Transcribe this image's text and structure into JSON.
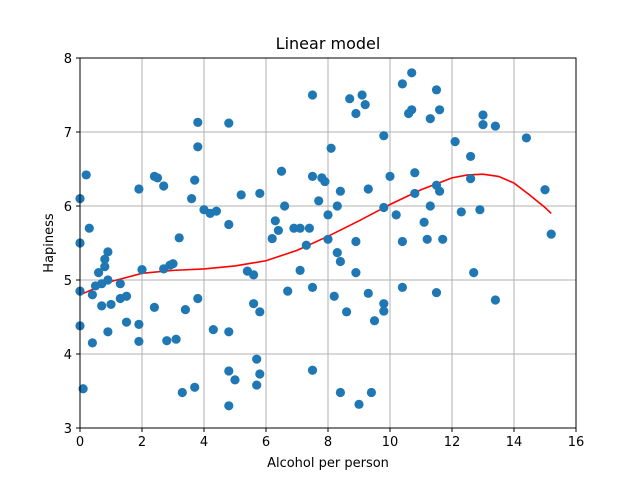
{
  "chart_data": {
    "type": "scatter",
    "title": "Linear model",
    "xlabel": "Alcohol per person",
    "ylabel": "Hapiness",
    "xlim": [
      0,
      16
    ],
    "ylim": [
      3,
      8
    ],
    "xticks": [
      "0",
      "2",
      "4",
      "6",
      "8",
      "10",
      "12",
      "14",
      "16"
    ],
    "yticks": [
      "3",
      "4",
      "5",
      "6",
      "7",
      "8"
    ],
    "grid": true,
    "colors": {
      "points": "#1f77b4",
      "fit_line": "#ff0000",
      "grid": "#b0b0b0"
    },
    "series": [
      {
        "kind": "points",
        "points": [
          [
            0.0,
            6.1
          ],
          [
            0.2,
            6.42
          ],
          [
            0.3,
            5.7
          ],
          [
            0.0,
            5.5
          ],
          [
            0.0,
            4.85
          ],
          [
            0.0,
            4.38
          ],
          [
            0.1,
            3.53
          ],
          [
            0.4,
            4.8
          ],
          [
            0.4,
            4.15
          ],
          [
            0.5,
            4.92
          ],
          [
            0.6,
            5.1
          ],
          [
            0.7,
            4.95
          ],
          [
            0.7,
            4.65
          ],
          [
            0.8,
            5.28
          ],
          [
            0.8,
            5.18
          ],
          [
            0.9,
            5.38
          ],
          [
            0.9,
            5.0
          ],
          [
            0.9,
            4.3
          ],
          [
            1.0,
            4.67
          ],
          [
            1.3,
            4.95
          ],
          [
            1.3,
            4.75
          ],
          [
            1.5,
            4.78
          ],
          [
            1.5,
            4.43
          ],
          [
            1.9,
            6.23
          ],
          [
            1.9,
            4.4
          ],
          [
            1.9,
            4.17
          ],
          [
            2.0,
            5.14
          ],
          [
            2.4,
            6.4
          ],
          [
            2.5,
            6.38
          ],
          [
            2.4,
            4.63
          ],
          [
            2.7,
            6.27
          ],
          [
            2.7,
            5.15
          ],
          [
            2.8,
            4.18
          ],
          [
            2.9,
            5.2
          ],
          [
            3.0,
            5.22
          ],
          [
            3.1,
            4.2
          ],
          [
            3.2,
            5.57
          ],
          [
            3.3,
            3.48
          ],
          [
            3.4,
            4.6
          ],
          [
            3.6,
            6.1
          ],
          [
            3.7,
            6.35
          ],
          [
            3.7,
            3.55
          ],
          [
            3.8,
            7.13
          ],
          [
            3.8,
            6.8
          ],
          [
            3.8,
            4.75
          ],
          [
            4.0,
            5.95
          ],
          [
            4.2,
            5.9
          ],
          [
            4.3,
            4.33
          ],
          [
            4.4,
            5.93
          ],
          [
            4.8,
            7.12
          ],
          [
            4.8,
            5.75
          ],
          [
            4.8,
            4.3
          ],
          [
            4.8,
            3.77
          ],
          [
            4.8,
            3.3
          ],
          [
            5.0,
            3.65
          ],
          [
            5.2,
            6.15
          ],
          [
            5.4,
            5.12
          ],
          [
            5.6,
            4.68
          ],
          [
            5.6,
            5.07
          ],
          [
            5.7,
            3.93
          ],
          [
            5.7,
            3.58
          ],
          [
            5.8,
            6.17
          ],
          [
            5.8,
            4.57
          ],
          [
            5.8,
            3.73
          ],
          [
            6.2,
            5.56
          ],
          [
            6.3,
            5.8
          ],
          [
            6.4,
            5.67
          ],
          [
            6.5,
            6.47
          ],
          [
            6.6,
            6.0
          ],
          [
            6.7,
            4.85
          ],
          [
            6.9,
            5.7
          ],
          [
            7.1,
            5.7
          ],
          [
            7.1,
            5.13
          ],
          [
            7.3,
            5.47
          ],
          [
            7.4,
            5.7
          ],
          [
            7.5,
            7.5
          ],
          [
            7.5,
            6.4
          ],
          [
            7.5,
            4.9
          ],
          [
            7.5,
            3.78
          ],
          [
            7.7,
            6.07
          ],
          [
            7.8,
            6.38
          ],
          [
            7.9,
            6.33
          ],
          [
            8.0,
            5.88
          ],
          [
            8.0,
            5.55
          ],
          [
            8.1,
            6.78
          ],
          [
            8.2,
            4.78
          ],
          [
            8.3,
            6.0
          ],
          [
            8.3,
            5.37
          ],
          [
            8.4,
            6.2
          ],
          [
            8.4,
            5.25
          ],
          [
            8.4,
            3.48
          ],
          [
            8.6,
            4.57
          ],
          [
            8.7,
            7.45
          ],
          [
            8.9,
            7.25
          ],
          [
            8.9,
            5.52
          ],
          [
            8.9,
            5.1
          ],
          [
            9.0,
            3.32
          ],
          [
            9.1,
            7.5
          ],
          [
            9.2,
            7.37
          ],
          [
            9.3,
            6.23
          ],
          [
            9.3,
            4.82
          ],
          [
            9.4,
            3.48
          ],
          [
            9.5,
            4.45
          ],
          [
            9.8,
            6.95
          ],
          [
            9.8,
            5.98
          ],
          [
            9.8,
            4.68
          ],
          [
            9.8,
            4.58
          ],
          [
            10.0,
            6.4
          ],
          [
            10.2,
            5.88
          ],
          [
            10.4,
            7.65
          ],
          [
            10.4,
            5.52
          ],
          [
            10.4,
            4.9
          ],
          [
            10.6,
            7.25
          ],
          [
            10.7,
            7.8
          ],
          [
            10.7,
            7.3
          ],
          [
            10.8,
            6.45
          ],
          [
            10.8,
            6.17
          ],
          [
            11.1,
            5.78
          ],
          [
            11.2,
            5.55
          ],
          [
            11.3,
            7.18
          ],
          [
            11.3,
            6.0
          ],
          [
            11.5,
            7.57
          ],
          [
            11.5,
            6.28
          ],
          [
            11.5,
            4.83
          ],
          [
            11.6,
            7.3
          ],
          [
            11.6,
            6.2
          ],
          [
            11.7,
            5.55
          ],
          [
            12.1,
            6.87
          ],
          [
            12.3,
            5.92
          ],
          [
            12.6,
            6.67
          ],
          [
            12.6,
            6.37
          ],
          [
            12.7,
            5.1
          ],
          [
            12.9,
            5.95
          ],
          [
            13.0,
            7.23
          ],
          [
            13.0,
            7.1
          ],
          [
            13.4,
            7.08
          ],
          [
            13.4,
            4.73
          ],
          [
            14.4,
            6.92
          ],
          [
            15.0,
            6.22
          ],
          [
            15.2,
            5.62
          ]
        ]
      },
      {
        "kind": "line",
        "points": [
          [
            0.0,
            4.8
          ],
          [
            1.0,
            4.98
          ],
          [
            2.0,
            5.09
          ],
          [
            3.0,
            5.13
          ],
          [
            4.0,
            5.15
          ],
          [
            5.0,
            5.19
          ],
          [
            6.0,
            5.26
          ],
          [
            7.0,
            5.4
          ],
          [
            8.0,
            5.59
          ],
          [
            9.0,
            5.8
          ],
          [
            10.0,
            6.02
          ],
          [
            11.0,
            6.22
          ],
          [
            12.0,
            6.38
          ],
          [
            12.5,
            6.42
          ],
          [
            13.0,
            6.43
          ],
          [
            13.5,
            6.4
          ],
          [
            14.0,
            6.31
          ],
          [
            14.5,
            6.15
          ],
          [
            15.0,
            5.98
          ],
          [
            15.2,
            5.9
          ]
        ]
      }
    ]
  }
}
